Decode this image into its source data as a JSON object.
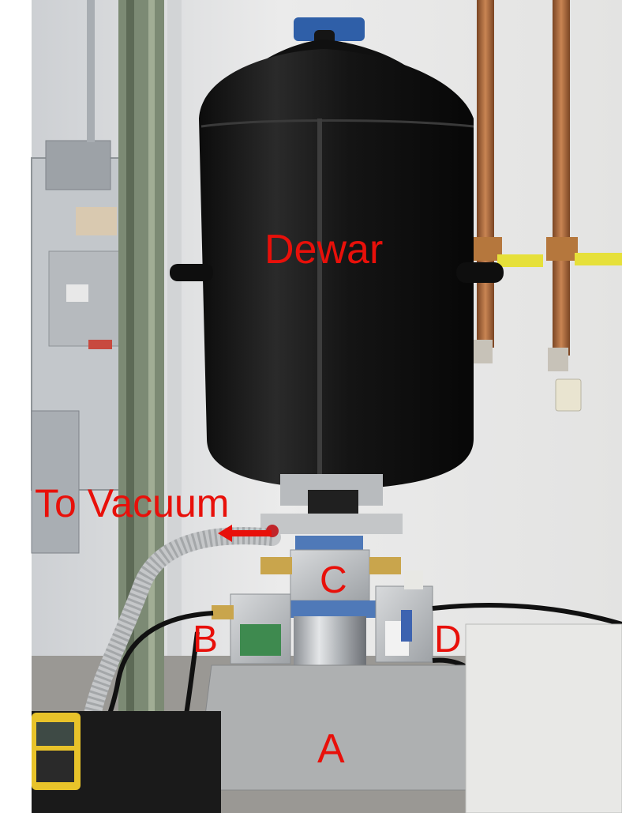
{
  "labels": {
    "dewar": "Dewar",
    "vacuum": "To Vacuum",
    "a": "A",
    "b": "B",
    "c": "C",
    "d": "D"
  },
  "colors": {
    "label": "#e8100a",
    "dewar_body": "#151515",
    "wall": "#dedede",
    "copper_pipe": "#b06a3e",
    "valve_handle": "#e6e03a",
    "aluminum": "#b9bcc0",
    "blue_flange": "#4f79b8"
  }
}
